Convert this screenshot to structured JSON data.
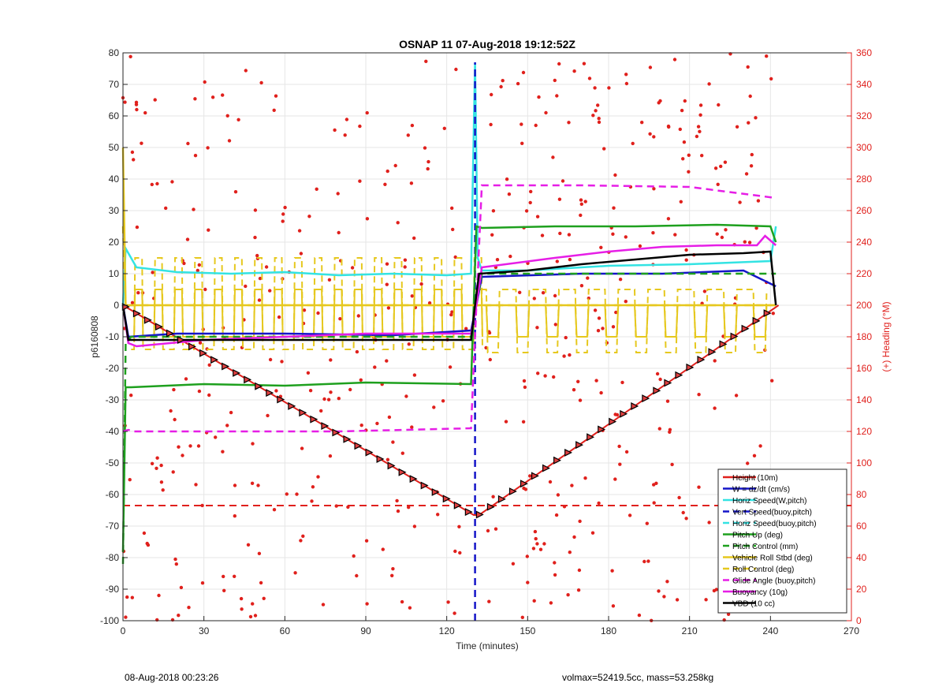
{
  "chart_data": {
    "type": "line",
    "title": "OSNAP 11 07-Aug-2018 19:12:52Z",
    "xlabel": "Time (minutes)",
    "ylabel_left": "p6160808",
    "ylabel_right": "(+) Heading (°M)",
    "xlim": [
      0,
      270
    ],
    "ylim_left": [
      -100,
      80
    ],
    "ylim_right": [
      0,
      360
    ],
    "x_ticks": [
      0,
      30,
      60,
      90,
      120,
      150,
      180,
      210,
      240,
      270
    ],
    "y_ticks_left": [
      -100,
      -90,
      -80,
      -70,
      -60,
      -50,
      -40,
      -30,
      -20,
      -10,
      0,
      10,
      20,
      30,
      40,
      50,
      60,
      70,
      80
    ],
    "y_ticks_right": [
      0,
      20,
      40,
      60,
      80,
      100,
      120,
      140,
      160,
      180,
      200,
      220,
      240,
      260,
      280,
      300,
      320,
      340,
      360
    ],
    "grid": true,
    "legend_position": "bottom-right",
    "colors": {
      "red": "#e0201c",
      "blue": "#1515c8",
      "cyan": "#33e3e3",
      "green": "#1ea01e",
      "yellow": "#e6c81e",
      "magenta": "#e61ee6",
      "black": "#000000"
    },
    "series": [
      {
        "name": "Height (10m)",
        "color": "red",
        "style": "solid",
        "x": [
          0,
          130,
          132,
          243
        ],
        "y": [
          0,
          -66.5,
          -66.5,
          0
        ]
      },
      {
        "name": "W = dz/dt (cm/s)",
        "color": "blue",
        "style": "solid",
        "x": [
          0,
          2,
          20,
          60,
          100,
          129,
          131,
          133,
          170,
          200,
          230,
          242
        ],
        "y": [
          0,
          -10,
          -9,
          -9,
          -9.5,
          -8,
          0,
          9,
          10,
          10,
          11,
          6
        ]
      },
      {
        "name": "Horiz Speed(W,pitch)",
        "color": "cyan",
        "style": "solid",
        "x": [
          0,
          1,
          5,
          20,
          40,
          60,
          80,
          100,
          120,
          129,
          130.5,
          131.5,
          133,
          150,
          180,
          210,
          240,
          242
        ],
        "y": [
          0,
          18,
          12,
          10.5,
          10,
          10.5,
          9.5,
          10,
          9.5,
          10,
          77,
          15,
          11,
          11,
          12.5,
          13,
          14,
          25
        ]
      },
      {
        "name": "Vert Speed(buoy,pitch)",
        "color": "blue",
        "style": "dashed",
        "x": [
          130.5,
          130.5
        ],
        "y": [
          -100,
          77
        ]
      },
      {
        "name": "Horiz Speed(buoy,pitch)",
        "color": "cyan",
        "style": "dashed",
        "x": [],
        "y": []
      },
      {
        "name": "Pitch Up (deg)",
        "color": "green",
        "style": "solid",
        "x": [
          0,
          1,
          3,
          30,
          60,
          90,
          129,
          131,
          133,
          160,
          190,
          220,
          240,
          242
        ],
        "y": [
          -78,
          -26,
          -26,
          -25,
          -25.5,
          -24.5,
          -25,
          25,
          24.5,
          25,
          25,
          25.5,
          25,
          20
        ]
      },
      {
        "name": "Pitch Control (mm)",
        "color": "green",
        "style": "dashed",
        "x": [
          0,
          1,
          3,
          129,
          131,
          133,
          242
        ],
        "y": [
          -82,
          -12,
          -10,
          -10,
          0,
          10,
          10
        ]
      },
      {
        "name": "Vehicle Roll Stbd (deg)",
        "color": "yellow",
        "style": "solid",
        "x": [
          0,
          1,
          3,
          129,
          131,
          133,
          242
        ],
        "y": [
          50,
          0,
          0,
          0,
          0,
          0,
          0
        ]
      },
      {
        "name": "Roll Control (deg)",
        "color": "yellow",
        "style": "dashed",
        "x": [
          0,
          1,
          3,
          129,
          131,
          133,
          242
        ],
        "y": [
          25,
          0,
          0,
          0,
          0,
          0,
          0
        ]
      },
      {
        "name": "Glide Angle (buoy,pitch)",
        "color": "magenta",
        "style": "dashed",
        "x": [
          0,
          2,
          4,
          40,
          80,
          129,
          131,
          133,
          170,
          210,
          242
        ],
        "y": [
          -40,
          -39.5,
          -40,
          -40,
          -40,
          -39,
          0,
          38,
          38,
          37.5,
          34
        ]
      },
      {
        "name": "Buoyancy (10g)",
        "color": "magenta",
        "style": "solid",
        "x": [
          0,
          2,
          5,
          30,
          60,
          90,
          129,
          131,
          133,
          160,
          180,
          200,
          220,
          235,
          238,
          242
        ],
        "y": [
          0,
          -12,
          -13,
          -11,
          -10,
          -9,
          -9,
          0,
          12,
          15,
          17,
          18.5,
          19,
          19,
          22,
          19
        ]
      },
      {
        "name": "VBD (10 cc)",
        "color": "black",
        "style": "solid",
        "x": [
          0,
          2,
          129,
          130.5,
          132,
          150,
          170,
          190,
          210,
          230,
          240,
          242
        ],
        "y": [
          0,
          -11,
          -11,
          0,
          10,
          11,
          13,
          14.5,
          16,
          16.5,
          17,
          0
        ]
      }
    ],
    "heading_reference_line": {
      "value": 73
    },
    "legend": [
      "Height (10m)",
      "W = dz/dt (cm/s)",
      "Horiz Speed(W,pitch)",
      "Vert Speed(buoy,pitch)",
      "Horiz Speed(buoy,pitch)",
      "Pitch Up (deg)",
      "Pitch Control (mm)",
      "Vehicle Roll Stbd (deg)",
      "Roll Control (deg)",
      "Glide Angle (buoy,pitch)",
      "Buoyancy (10g)",
      "VBD (10 cc)"
    ]
  },
  "footer": {
    "left": "08-Aug-2018 00:23:26",
    "right": "volmax=52419.5cc, mass=53.258kg"
  }
}
